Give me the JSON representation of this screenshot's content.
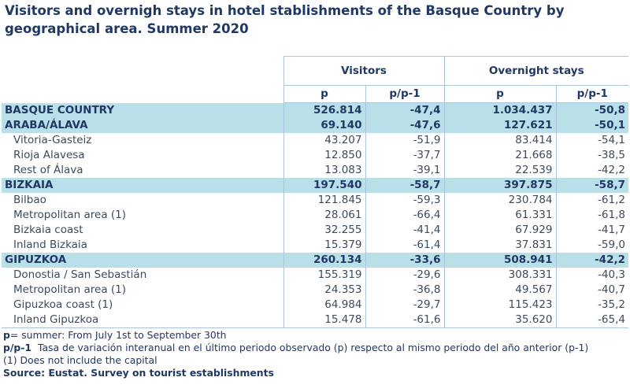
{
  "title": "Visitors and overnigh stays in hotel stablishments of the Basque Country by geographical area. Summer 2020",
  "headers": {
    "visitors": "Visitors",
    "overnight": "Overnight stays",
    "p": "p",
    "pp1": "p/p-1"
  },
  "rows": [
    {
      "label": "BASQUE COUNTRY",
      "kind": "region",
      "v": "526.814",
      "vp": "-47,4",
      "o": "1.034.437",
      "op": "-50,8"
    },
    {
      "label": "ARABA/ÁLAVA",
      "kind": "region",
      "v": "69.140",
      "vp": "-47,6",
      "o": "127.621",
      "op": "-50,1"
    },
    {
      "label": "Vitoria-Gasteiz",
      "kind": "sub",
      "v": "43.207",
      "vp": "-51,9",
      "o": "83.414",
      "op": "-54,1"
    },
    {
      "label": "Rioja Alavesa",
      "kind": "sub",
      "v": "12.850",
      "vp": "-37,7",
      "o": "21.668",
      "op": "-38,5"
    },
    {
      "label": "Rest of Álava",
      "kind": "sub",
      "v": "13.083",
      "vp": "-39,1",
      "o": "22.539",
      "op": "-42,2"
    },
    {
      "label": "BIZKAIA",
      "kind": "region",
      "v": "197.540",
      "vp": "-58,7",
      "o": "397.875",
      "op": "-58,7"
    },
    {
      "label": "Bilbao",
      "kind": "sub",
      "v": "121.845",
      "vp": "-59,3",
      "o": "230.784",
      "op": "-61,2"
    },
    {
      "label": "Metropolitan area (1)",
      "kind": "sub",
      "v": "28.061",
      "vp": "-66,4",
      "o": "61.331",
      "op": "-61,8"
    },
    {
      "label": "Bizkaia coast",
      "kind": "sub",
      "v": "32.255",
      "vp": "-41,4",
      "o": "67.929",
      "op": "-41,7"
    },
    {
      "label": "Inland Bizkaia",
      "kind": "sub",
      "v": "15.379",
      "vp": "-61,4",
      "o": "37.831",
      "op": "-59,0"
    },
    {
      "label": "GIPUZKOA",
      "kind": "region",
      "v": "260.134",
      "vp": "-33,6",
      "o": "508.941",
      "op": "-42,2"
    },
    {
      "label": "Donostia / San Sebastián",
      "kind": "sub",
      "v": "155.319",
      "vp": "-29,6",
      "o": "308.331",
      "op": "-40,3"
    },
    {
      "label": "Metropolitan area (1)",
      "kind": "sub",
      "v": "24.353",
      "vp": "-36,8",
      "o": "49.567",
      "op": "-40,7"
    },
    {
      "label": "Gipuzkoa coast (1)",
      "kind": "sub",
      "v": "64.984",
      "vp": "-29,7",
      "o": "115.423",
      "op": "-35,2"
    },
    {
      "label": "Inland Gipuzkoa",
      "kind": "sub",
      "v": "15.478",
      "vp": "-61,6",
      "o": "35.620",
      "op": "-65,4"
    }
  ],
  "notes": {
    "p_key": "p",
    "p_text": "= summer: From July 1st to September 30th",
    "pp1_key": "p/p-1",
    "pp1_text": "Tasa de variación interanual en el último periodo observado (p) respecto al mismo periodo del año anterior (p-1)",
    "capital": "(1) Does not include the capital",
    "source": "Source: Eustat. Survey on tourist establishments"
  }
}
